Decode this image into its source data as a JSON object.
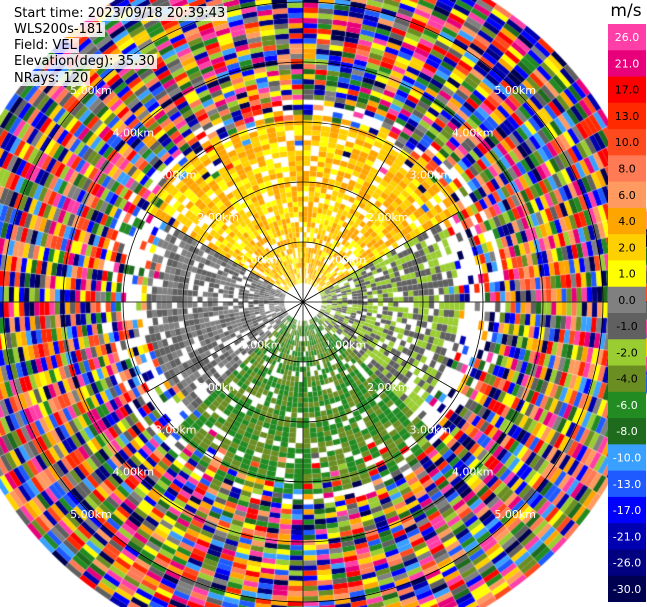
{
  "header": {
    "start_time": "Start time: 2023/09/18 20:39:43",
    "instrument": "WLS200s-181",
    "field": "Field: VEL",
    "elevation": "Elevation(deg): 35.30",
    "nrays": "NRays: 120"
  },
  "colorbar": {
    "title": "m/s",
    "ticks": [
      "26.0",
      "21.0",
      "17.0",
      "13.0",
      "10.0",
      "8.0",
      "6.0",
      "4.0",
      "2.0",
      "1.0",
      "0.0",
      "-1.0",
      "-2.0",
      "-4.0",
      "-6.0",
      "-8.0",
      "-10.0",
      "-13.0",
      "-17.0",
      "-21.0",
      "-26.0",
      "-30.0"
    ],
    "colors": [
      "#ff3fa8",
      "#e8007a",
      "#ff0000",
      "#ff2a00",
      "#ff4a1e",
      "#ff7a55",
      "#ff9a60",
      "#ffa500",
      "#ffd000",
      "#ffff00",
      "#808080",
      "#606060",
      "#9acd32",
      "#6b8e23",
      "#228b22",
      "#1e6b1e",
      "#3aa0ff",
      "#1e5aff",
      "#0000ff",
      "#0000b0",
      "#000080",
      "#000050"
    ]
  },
  "chart_data": {
    "type": "heatmap",
    "projection": "polar PPI scan",
    "field": "VEL",
    "units": "m/s",
    "n_rays": 120,
    "elevation_deg": 35.3,
    "range_rings_km": [
      1.0,
      2.0,
      3.0,
      4.0,
      5.0
    ],
    "range_labels": [
      "1.00km",
      "2.00km",
      "3.00km",
      "4.00km",
      "5.00km"
    ],
    "max_range_km": 5.9,
    "grid": true,
    "sectors": [
      {
        "azimuth_deg": [
          300,
          60
        ],
        "range_km": [
          0.3,
          3.1
        ],
        "velocity_ms": [
          1.0,
          6.0
        ],
        "description": "receding (yellow/orange)"
      },
      {
        "azimuth_deg": [
          60,
          135
        ],
        "range_km": [
          0.3,
          2.6
        ],
        "velocity_ms": [
          -2.0,
          0.0
        ],
        "description": "near zero (grey/olive)"
      },
      {
        "azimuth_deg": [
          135,
          225
        ],
        "range_km": [
          0.3,
          3.2
        ],
        "velocity_ms": [
          -6.0,
          -2.0
        ],
        "description": "approaching (green)"
      },
      {
        "azimuth_deg": [
          225,
          300
        ],
        "range_km": [
          0.3,
          2.6
        ],
        "velocity_ms": [
          -1.0,
          1.0
        ],
        "description": "near zero (grey)"
      }
    ],
    "noise_region_km": [
      3.0,
      5.9
    ]
  }
}
